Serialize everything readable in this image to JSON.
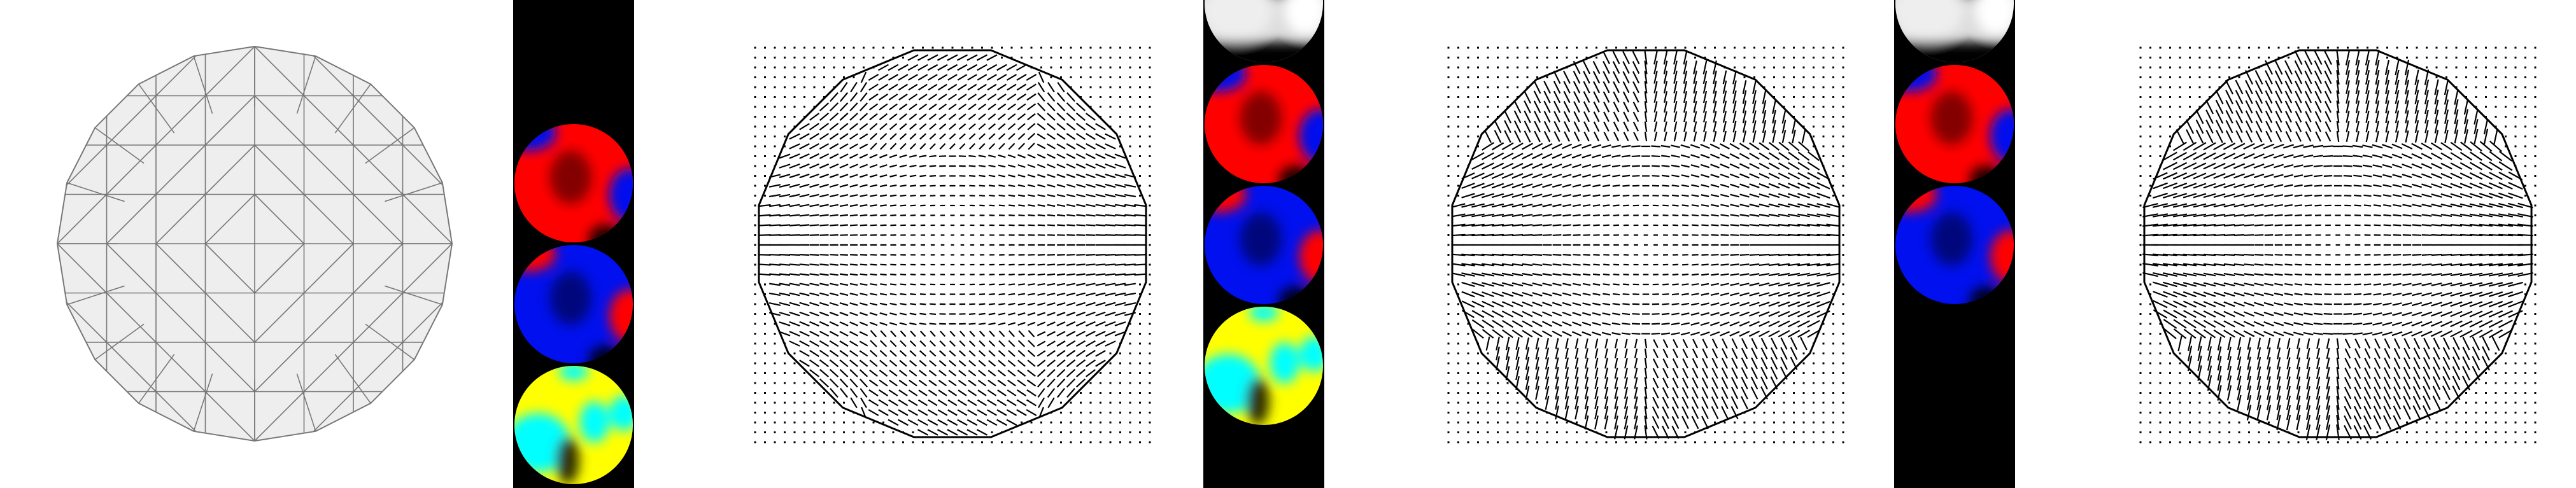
{
  "figure": {
    "panels": [
      {
        "kind": "mesh",
        "name": "triangle-mesh-disk"
      },
      {
        "kind": "scalar_strip",
        "name": "scalar-strip-1",
        "rows": [
          "red-blue",
          "blue-red",
          "yellow-cyan"
        ]
      },
      {
        "kind": "vector_field",
        "name": "vector-field-1",
        "pattern": "radial"
      },
      {
        "kind": "scalar_strip",
        "name": "scalar-strip-2",
        "rows": [
          "grayscale",
          "red-blue",
          "blue-red",
          "yellow-cyan"
        ]
      },
      {
        "kind": "vector_field",
        "name": "vector-field-2",
        "pattern": "hyperbolic"
      },
      {
        "kind": "scalar_strip",
        "name": "scalar-strip-3",
        "rows": [
          "grayscale",
          "red-blue",
          "blue-red"
        ]
      },
      {
        "kind": "vector_field",
        "name": "vector-field-3",
        "pattern": "hyperbolic-strong"
      }
    ],
    "colors": {
      "mesh_fill": "#eeeeee",
      "mesh_edge": "#777777",
      "background": "#ffffff",
      "strip_bg": "#000000",
      "red": "#ff0000",
      "blue": "#0010ee",
      "yellow": "#ffff00",
      "cyan": "#00ffff",
      "outline": "#000000",
      "arrow": "#000000"
    }
  }
}
